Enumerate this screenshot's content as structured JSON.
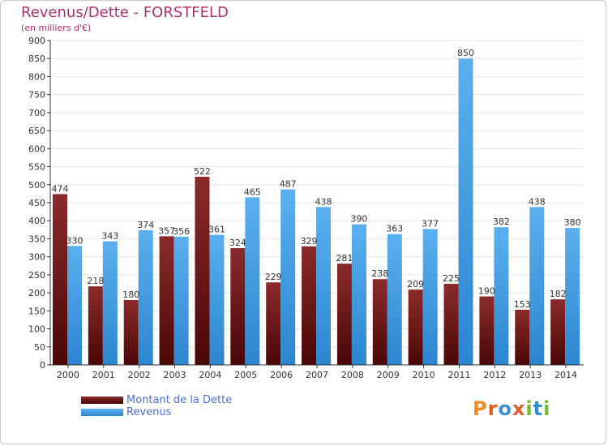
{
  "title": "Revenus/Dette - FORSTFELD",
  "subtitle": "(en milliers d'€)",
  "legend": [
    {
      "label": "Montant de la Dette",
      "color": "#7a1a1a"
    },
    {
      "label": "Revenus",
      "color": "#4aa3e6"
    }
  ],
  "logo": {
    "text": "Proxiti"
  },
  "colors": {
    "dette_top": "#8b2b2b",
    "dette_bottom": "#4a0606",
    "revenus_top": "#5ab0ef",
    "revenus_bottom": "#2c86cf",
    "title": "#b0306f",
    "grid": "#e6e6e6"
  },
  "chart_data": {
    "type": "bar",
    "categories": [
      "2000",
      "2001",
      "2002",
      "2003",
      "2004",
      "2005",
      "2006",
      "2007",
      "2008",
      "2009",
      "2010",
      "2011",
      "2012",
      "2013",
      "2014"
    ],
    "series": [
      {
        "name": "Montant de la Dette",
        "values": [
          474,
          218,
          180,
          357,
          522,
          324,
          229,
          329,
          281,
          238,
          209,
          225,
          190,
          153,
          182
        ]
      },
      {
        "name": "Revenus",
        "values": [
          330,
          343,
          374,
          356,
          361,
          465,
          487,
          438,
          390,
          363,
          377,
          850,
          382,
          438,
          380
        ]
      }
    ],
    "ylim": [
      0,
      900
    ],
    "yticks": [
      0,
      50,
      100,
      150,
      200,
      250,
      300,
      350,
      400,
      450,
      500,
      550,
      600,
      650,
      700,
      750,
      800,
      850,
      900
    ],
    "grid": true,
    "legend_position": "bottom-left"
  }
}
